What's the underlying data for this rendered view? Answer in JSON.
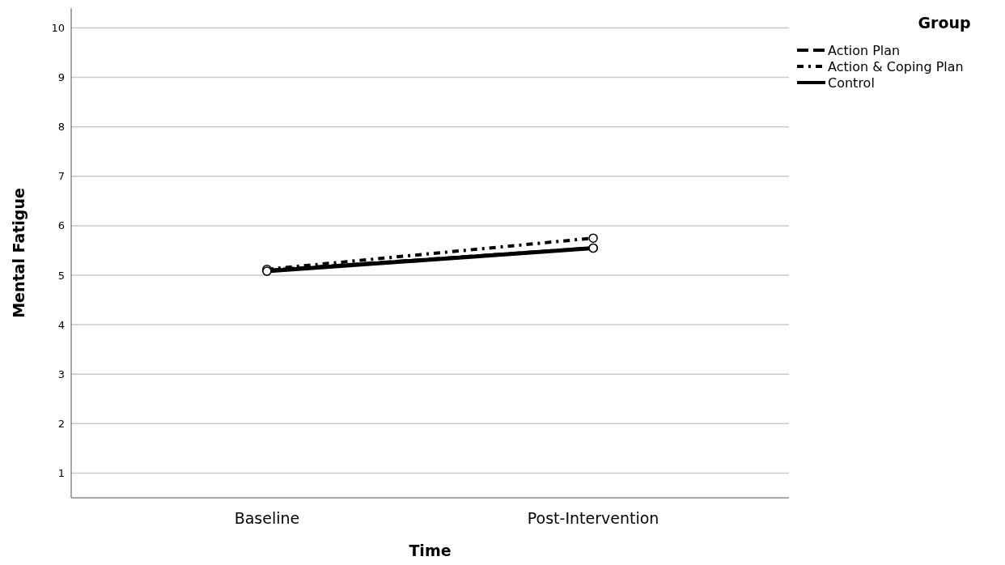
{
  "chart_data": {
    "type": "line",
    "xlabel": "Time",
    "ylabel": "Mental Fatigue",
    "legend_title": "Group",
    "categories": [
      "Baseline",
      "Post-Intervention"
    ],
    "series": [
      {
        "name": "Action Plan",
        "color": "#000000",
        "values": [
          5.1,
          5.55
        ],
        "line_style": "dashed"
      },
      {
        "name": "Action & Coping Plan",
        "color": "#000000",
        "values": [
          5.12,
          5.75
        ],
        "line_style": "dotted"
      },
      {
        "name": "Control",
        "color": "#000000",
        "values": [
          5.08,
          5.55
        ],
        "line_style": "solid"
      }
    ],
    "ylim": [
      0.5,
      10.4
    ],
    "yticks": [
      1,
      2,
      3,
      4,
      5,
      6,
      7,
      8,
      9,
      10
    ],
    "grid": "y",
    "legend": "top right",
    "marker": "circle"
  }
}
